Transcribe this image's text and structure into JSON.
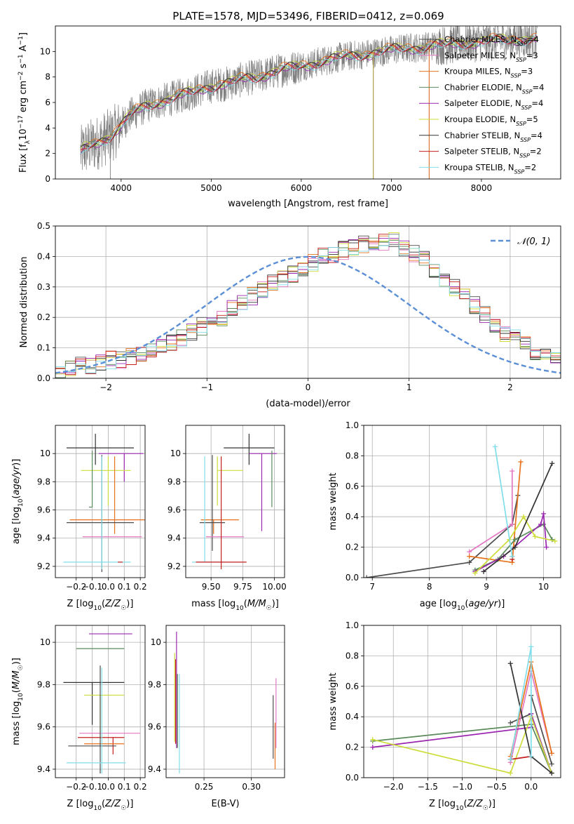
{
  "figure_title": "PLATE=1578, MJD=53496, FIBERID=0412, z=0.069",
  "models": [
    {
      "name": "Chabrier MILES",
      "nssp": "4",
      "color": "#4d4d4d"
    },
    {
      "name": "Salpeter MILES",
      "nssp": "3",
      "color": "#e377c2"
    },
    {
      "name": "Kroupa MILES",
      "nssp": "3",
      "color": "#e8731c"
    },
    {
      "name": "Chabrier ELODIE",
      "nssp": "4",
      "color": "#5a8a5a"
    },
    {
      "name": "Salpeter ELODIE",
      "nssp": "4",
      "color": "#9b27b0"
    },
    {
      "name": "Kroupa ELODIE",
      "nssp": "5",
      "color": "#cddc39"
    },
    {
      "name": "Chabrier STELIB",
      "nssp": "4",
      "color": "#333333"
    },
    {
      "name": "Salpeter STELIB",
      "nssp": "2",
      "color": "#c41e1e"
    },
    {
      "name": "Kroupa STELIB",
      "nssp": "2",
      "color": "#80deea"
    }
  ],
  "chart_data": [
    {
      "id": "spectrum",
      "type": "line",
      "xlabel": "wavelength [Angstrom, rest frame]",
      "ylabel_parts": [
        "Flux [f",
        "λ",
        "10",
        "−17",
        " erg cm",
        "−2",
        " s",
        "−1",
        " A",
        "−1",
        "]"
      ],
      "xlim": [
        3270,
        8880
      ],
      "ylim": [
        0,
        12
      ],
      "xticks": [
        4000,
        5000,
        6000,
        7000,
        8000
      ],
      "yticks": [
        0,
        2,
        4,
        6,
        8,
        10
      ],
      "data_color": "#7f7f7f",
      "data_x": [
        3550,
        3600,
        3700,
        3800,
        3900,
        4000,
        4100,
        4200,
        4300,
        4400,
        4500,
        4600,
        4700,
        4800,
        4900,
        5000,
        5100,
        5200,
        5300,
        5400,
        5500,
        5600,
        5700,
        5800,
        5900,
        6000,
        6100,
        6200,
        6300,
        6400,
        6500,
        6600,
        6700,
        6800,
        6900,
        7000,
        7100,
        7200,
        7300,
        7400,
        7500,
        7600,
        7700,
        7800,
        7900,
        8000,
        8100,
        8200,
        8300,
        8400,
        8500,
        8600
      ],
      "data_y": [
        2.0,
        2.4,
        2.7,
        3.1,
        3.5,
        4.2,
        5.0,
        5.4,
        5.8,
        6.0,
        6.2,
        6.4,
        6.6,
        6.8,
        7.1,
        7.3,
        7.4,
        7.5,
        7.7,
        7.9,
        8.0,
        8.2,
        8.4,
        8.6,
        8.7,
        8.9,
        9.0,
        9.2,
        9.3,
        9.5,
        9.6,
        9.7,
        9.8,
        9.9,
        10.0,
        10.1,
        10.2,
        10.3,
        10.3,
        10.4,
        10.5,
        10.5,
        10.6,
        10.7,
        10.7,
        10.8,
        10.8,
        10.9,
        10.9,
        11.0,
        11.0,
        11.0
      ],
      "model_offsets": [
        0.05,
        -0.05,
        0.15,
        0.0,
        -0.1,
        0.1,
        0.05,
        -0.05,
        -0.12
      ],
      "dips": [
        [
          6800,
          0.0
        ],
        [
          7420,
          0.0
        ],
        [
          3880,
          0.0
        ]
      ]
    },
    {
      "id": "residuals",
      "type": "histogram",
      "xlabel": "(data-model)/error",
      "ylabel": "Normed distribution",
      "xlim": [
        -2.5,
        2.5
      ],
      "ylim": [
        0,
        0.5
      ],
      "xticks": [
        -2,
        -1,
        0,
        1,
        2
      ],
      "xtick_labels": [
        "−2",
        "−1",
        "0",
        "1",
        "2"
      ],
      "yticks": [
        0.0,
        0.1,
        0.2,
        0.3,
        0.4,
        0.5
      ],
      "ytick_labels": [
        "0.0",
        "0.1",
        "0.2",
        "0.3",
        "0.4",
        "0.5"
      ],
      "bin_width": 0.1,
      "bin_start": -2.5,
      "reference": {
        "label": "𝒩(0, 1)",
        "color": "#5b8fd6",
        "mu": 0,
        "sigma": 1
      },
      "hist_base": [
        0.03,
        0.03,
        0.04,
        0.04,
        0.05,
        0.06,
        0.06,
        0.07,
        0.08,
        0.09,
        0.1,
        0.12,
        0.13,
        0.15,
        0.17,
        0.19,
        0.2,
        0.23,
        0.25,
        0.27,
        0.29,
        0.31,
        0.33,
        0.34,
        0.36,
        0.38,
        0.4,
        0.41,
        0.42,
        0.43,
        0.44,
        0.44,
        0.45,
        0.45,
        0.43,
        0.41,
        0.39,
        0.36,
        0.33,
        0.3,
        0.27,
        0.24,
        0.21,
        0.18,
        0.15,
        0.13,
        0.11,
        0.09,
        0.08,
        0.07
      ]
    },
    {
      "id": "age_vs_z",
      "type": "errorbar",
      "xlabel": "Z [log10(Z/Z☉)]",
      "ylabel": "age  [log10(age/yr)]",
      "xlim": [
        -0.33,
        0.23
      ],
      "ylim": [
        9.12,
        10.2
      ],
      "xticks": [
        -0.2,
        -0.1,
        0.0,
        0.1,
        0.2
      ],
      "xtick_labels": [
        "−0.2",
        "−0.1",
        "0.0",
        "0.1",
        "0.2"
      ],
      "yticks": [
        9.2,
        9.4,
        9.6,
        9.8,
        10.0
      ],
      "points": [
        {
          "m": 6,
          "x": -0.08,
          "xerr": [
            0.18,
            0.24
          ],
          "y": 10.04,
          "yerr": [
            0.12,
            0.1
          ]
        },
        {
          "m": 4,
          "x": 0.1,
          "xerr": [
            0.16,
            0.12
          ],
          "y": 10.0,
          "yerr": [
            0.2,
            0.0
          ]
        },
        {
          "m": 5,
          "x": 0.0,
          "xerr": [
            0.17,
            0.14
          ],
          "y": 9.88,
          "yerr": [
            0.25,
            0.1
          ]
        },
        {
          "m": 3,
          "x": -0.1,
          "xerr": [
            0.02,
            0.0
          ],
          "y": 9.62,
          "yerr": [
            0.0,
            0.4
          ]
        },
        {
          "m": 2,
          "x": 0.04,
          "xerr": [
            0.28,
            0.2
          ],
          "y": 9.53,
          "yerr": [
            0.1,
            0.45
          ]
        },
        {
          "m": 0,
          "x": -0.04,
          "xerr": [
            0.22,
            0.2
          ],
          "y": 9.51,
          "yerr": [
            0.35,
            0.48
          ]
        },
        {
          "m": 1,
          "x": 0.06,
          "xerr": [
            0.22,
            0.15
          ],
          "y": 9.41,
          "yerr": [
            0.0,
            0.0
          ]
        },
        {
          "m": 8,
          "x": -0.04,
          "xerr": [
            0.24,
            0.18
          ],
          "y": 9.23,
          "yerr": [
            0.05,
            0.75
          ]
        },
        {
          "m": 7,
          "x": 0.06,
          "xerr": [
            0.0,
            0.03
          ],
          "y": 9.23,
          "yerr": [
            0.0,
            0.0
          ]
        }
      ]
    },
    {
      "id": "age_vs_mass",
      "type": "errorbar",
      "xlabel": "mass [log10(M/M☉)]",
      "ylabel": "",
      "xlim": [
        9.3,
        10.08
      ],
      "ylim": [
        9.12,
        10.2
      ],
      "xticks": [
        9.5,
        9.75,
        10.0
      ],
      "xtick_labels": [
        "9.50",
        "9.75",
        "10.00"
      ],
      "yticks": [
        9.2,
        9.4,
        9.6,
        9.8,
        10.0
      ],
      "points": [
        {
          "m": 6,
          "x": 9.8,
          "xerr": [
            0.2,
            0.2
          ],
          "y": 10.04,
          "yerr": [
            0.12,
            0.1
          ]
        },
        {
          "m": 4,
          "x": 9.9,
          "xerr": [
            0.1,
            0.12
          ],
          "y": 10.0,
          "yerr": [
            0.55,
            0.0
          ]
        },
        {
          "m": 5,
          "x": 9.55,
          "xerr": [
            0.0,
            0.2
          ],
          "y": 9.88,
          "yerr": [
            0.25,
            0.1
          ]
        },
        {
          "m": 3,
          "x": 9.98,
          "xerr": [
            0.0,
            0.0
          ],
          "y": 9.62,
          "yerr": [
            0.0,
            0.4
          ]
        },
        {
          "m": 2,
          "x": 9.52,
          "xerr": [
            0.1,
            0.2
          ],
          "y": 9.53,
          "yerr": [
            0.1,
            0.0
          ]
        },
        {
          "m": 0,
          "x": 9.51,
          "xerr": [
            0.1,
            0.1
          ],
          "y": 9.51,
          "yerr": [
            0.2,
            0.48
          ]
        },
        {
          "m": 1,
          "x": 9.56,
          "xerr": [
            0.1,
            0.2
          ],
          "y": 9.41,
          "yerr": [
            0.0,
            0.0
          ]
        },
        {
          "m": 8,
          "x": 9.45,
          "xerr": [
            0.1,
            0.15
          ],
          "y": 9.23,
          "yerr": [
            0.0,
            0.75
          ]
        },
        {
          "m": 7,
          "x": 9.58,
          "xerr": [
            0.2,
            0.2
          ],
          "y": 9.23,
          "yerr": [
            0.05,
            0.75
          ]
        }
      ]
    },
    {
      "id": "weight_vs_age",
      "type": "line",
      "xlabel": "age  [log10(age/yr)]",
      "ylabel": "mass weight",
      "xlim": [
        6.85,
        10.3
      ],
      "ylim": [
        0,
        1
      ],
      "xticks": [
        7,
        8,
        9,
        10
      ],
      "yticks": [
        0,
        0.2,
        0.4,
        0.6,
        0.8,
        1.0
      ],
      "ytick_labels": [
        "0.0",
        "0.2",
        "0.4",
        "0.6",
        "0.8",
        "1.0"
      ],
      "series": [
        {
          "m": 0,
          "x": [
            6.9,
            8.7,
            9.45,
            9.55
          ],
          "y": [
            0.0,
            0.1,
            0.35,
            0.54
          ]
        },
        {
          "m": 1,
          "x": [
            8.7,
            9.45,
            9.45
          ],
          "y": [
            0.17,
            0.35,
            0.7
          ]
        },
        {
          "m": 2,
          "x": [
            8.7,
            9.45,
            9.6
          ],
          "y": [
            0.14,
            0.1,
            0.76
          ]
        },
        {
          "m": 3,
          "x": [
            8.8,
            9.2,
            9.5,
            10.0,
            10.15
          ],
          "y": [
            0.05,
            0.12,
            0.25,
            0.35,
            0.25
          ]
        },
        {
          "m": 4,
          "x": [
            8.8,
            9.3,
            9.95,
            10.0,
            10.05
          ],
          "y": [
            0.04,
            0.14,
            0.35,
            0.42,
            0.2
          ]
        },
        {
          "m": 5,
          "x": [
            8.8,
            9.4,
            9.65,
            9.85,
            10.2
          ],
          "y": [
            0.03,
            0.25,
            0.4,
            0.27,
            0.24
          ]
        },
        {
          "m": 6,
          "x": [
            8.95,
            9.5,
            10.15
          ],
          "y": [
            0.04,
            0.2,
            0.75
          ]
        },
        {
          "m": 7,
          "x": [
            9.45,
            9.45
          ],
          "y": [
            0.12,
            0.14
          ]
        },
        {
          "m": 8,
          "x": [
            9.15,
            9.45
          ],
          "y": [
            0.86,
            0.14
          ]
        }
      ]
    },
    {
      "id": "mass_vs_z",
      "type": "errorbar",
      "xlabel": "Z [log10(Z/Z☉)]",
      "ylabel": "mass [log10(M/M☉)]",
      "xlim": [
        -0.33,
        0.23
      ],
      "ylim": [
        9.36,
        10.08
      ],
      "xticks": [
        -0.2,
        -0.1,
        0.0,
        0.1,
        0.2
      ],
      "xtick_labels": [
        "−0.2",
        "−0.1",
        "0.0",
        "0.1",
        "0.2"
      ],
      "yticks": [
        9.4,
        9.6,
        9.8,
        10.0
      ],
      "points": [
        {
          "m": 4,
          "x": 0.0,
          "xerr": [
            0.12,
            0.15
          ],
          "y": 10.04,
          "yerr": [
            0.0,
            0.0
          ]
        },
        {
          "m": 3,
          "x": 0.0,
          "xerr": [
            0.2,
            0.1
          ],
          "y": 9.97,
          "yerr": [
            0.0,
            0.0
          ]
        },
        {
          "m": 6,
          "x": -0.1,
          "xerr": [
            0.18,
            0.2
          ],
          "y": 9.81,
          "yerr": [
            0.2,
            0.0
          ]
        },
        {
          "m": 5,
          "x": -0.05,
          "xerr": [
            0.1,
            0.15
          ],
          "y": 9.75,
          "yerr": [
            0.2,
            0.0
          ]
        },
        {
          "m": 1,
          "x": 0.02,
          "xerr": [
            0.2,
            0.18
          ],
          "y": 9.57,
          "yerr": [
            0.0,
            0.0
          ]
        },
        {
          "m": 7,
          "x": 0.03,
          "xerr": [
            0.22,
            0.07
          ],
          "y": 9.55,
          "yerr": [
            0.08,
            0.0
          ]
        },
        {
          "m": 2,
          "x": -0.05,
          "xerr": [
            0.1,
            0.15
          ],
          "y": 9.52,
          "yerr": [
            0.0,
            0.0
          ]
        },
        {
          "m": 0,
          "x": -0.05,
          "xerr": [
            0.2,
            0.1
          ],
          "y": 9.51,
          "yerr": [
            0.13,
            0.38
          ]
        },
        {
          "m": 8,
          "x": -0.04,
          "xerr": [
            0.22,
            0.15
          ],
          "y": 9.43,
          "yerr": [
            0.05,
            0.45
          ]
        }
      ]
    },
    {
      "id": "mass_vs_ebv",
      "type": "errorbar",
      "xlabel": "E(B-V)",
      "ylabel": "",
      "xlim": [
        0.21,
        0.335
      ],
      "ylim": [
        9.36,
        10.08
      ],
      "xticks": [
        0.25,
        0.3
      ],
      "xtick_labels": [
        "0.25",
        "0.30"
      ],
      "yticks": [
        9.4,
        9.6,
        9.8,
        10.0
      ],
      "points": [
        {
          "m": 4,
          "x": 0.221,
          "xerr": [
            0,
            0
          ],
          "y": 9.75,
          "yerr": [
            0.25,
            0.3
          ]
        },
        {
          "m": 7,
          "x": 0.22,
          "xerr": [
            0,
            0
          ],
          "y": 9.62,
          "yerr": [
            0.1,
            0.3
          ]
        },
        {
          "m": 5,
          "x": 0.219,
          "xerr": [
            0,
            0
          ],
          "y": 9.75,
          "yerr": [
            0.22,
            0.2
          ]
        },
        {
          "m": 8,
          "x": 0.224,
          "xerr": [
            0,
            0
          ],
          "y": 9.6,
          "yerr": [
            0.22,
            0.25
          ]
        },
        {
          "m": 3,
          "x": 0.222,
          "xerr": [
            0,
            0
          ],
          "y": 9.55,
          "yerr": [
            0.05,
            0.3
          ]
        },
        {
          "m": 0,
          "x": 0.323,
          "xerr": [
            0,
            0
          ],
          "y": 9.55,
          "yerr": [
            0.1,
            0.2
          ]
        },
        {
          "m": 2,
          "x": 0.325,
          "xerr": [
            0,
            0
          ],
          "y": 9.52,
          "yerr": [
            0.12,
            0.1
          ]
        },
        {
          "m": 1,
          "x": 0.326,
          "xerr": [
            0,
            0
          ],
          "y": 9.7,
          "yerr": [
            0.2,
            0.13
          ]
        }
      ]
    },
    {
      "id": "weight_vs_z",
      "type": "line",
      "xlabel": "Z [log10(Z/Z☉)]",
      "ylabel": "mass weight",
      "xlim": [
        -2.43,
        0.43
      ],
      "ylim": [
        0,
        1
      ],
      "xticks": [
        -2.0,
        -1.5,
        -1.0,
        -0.5,
        0.0
      ],
      "xtick_labels": [
        "−2.0",
        "−1.5",
        "−1.0",
        "−0.5",
        "0.0"
      ],
      "yticks": [
        0,
        0.2,
        0.4,
        0.6,
        0.8,
        1.0
      ],
      "ytick_labels": [
        "0.0",
        "0.2",
        "0.4",
        "0.6",
        "0.8",
        "1.0"
      ],
      "series": [
        {
          "m": 0,
          "x": [
            -0.3,
            0.0,
            0.0,
            0.3
          ],
          "y": [
            0.36,
            0.42,
            0.54,
            0.09
          ]
        },
        {
          "m": 1,
          "x": [
            -0.3,
            0.0,
            0.3
          ],
          "y": [
            0.1,
            0.7,
            0.16
          ]
        },
        {
          "m": 2,
          "x": [
            -0.3,
            0.0,
            0.3
          ],
          "y": [
            0.14,
            0.76,
            0.16
          ]
        },
        {
          "m": 3,
          "x": [
            -2.3,
            0.0,
            0.3
          ],
          "y": [
            0.24,
            0.35,
            0.03
          ]
        },
        {
          "m": 4,
          "x": [
            -2.3,
            0.0,
            0.0,
            0.3
          ],
          "y": [
            0.2,
            0.33,
            0.42,
            0.03
          ]
        },
        {
          "m": 5,
          "x": [
            -2.3,
            -0.3,
            0.0,
            0.3
          ],
          "y": [
            0.25,
            0.03,
            0.4,
            0.03
          ]
        },
        {
          "m": 6,
          "x": [
            -0.3,
            0.0,
            0.3
          ],
          "y": [
            0.75,
            0.14,
            0.03
          ]
        },
        {
          "m": 7,
          "x": [
            -0.3,
            0.0
          ],
          "y": [
            0.12,
            0.14
          ]
        },
        {
          "m": 8,
          "x": [
            -0.3,
            0.0,
            0.0
          ],
          "y": [
            0.12,
            0.86,
            0.14
          ]
        }
      ]
    }
  ]
}
